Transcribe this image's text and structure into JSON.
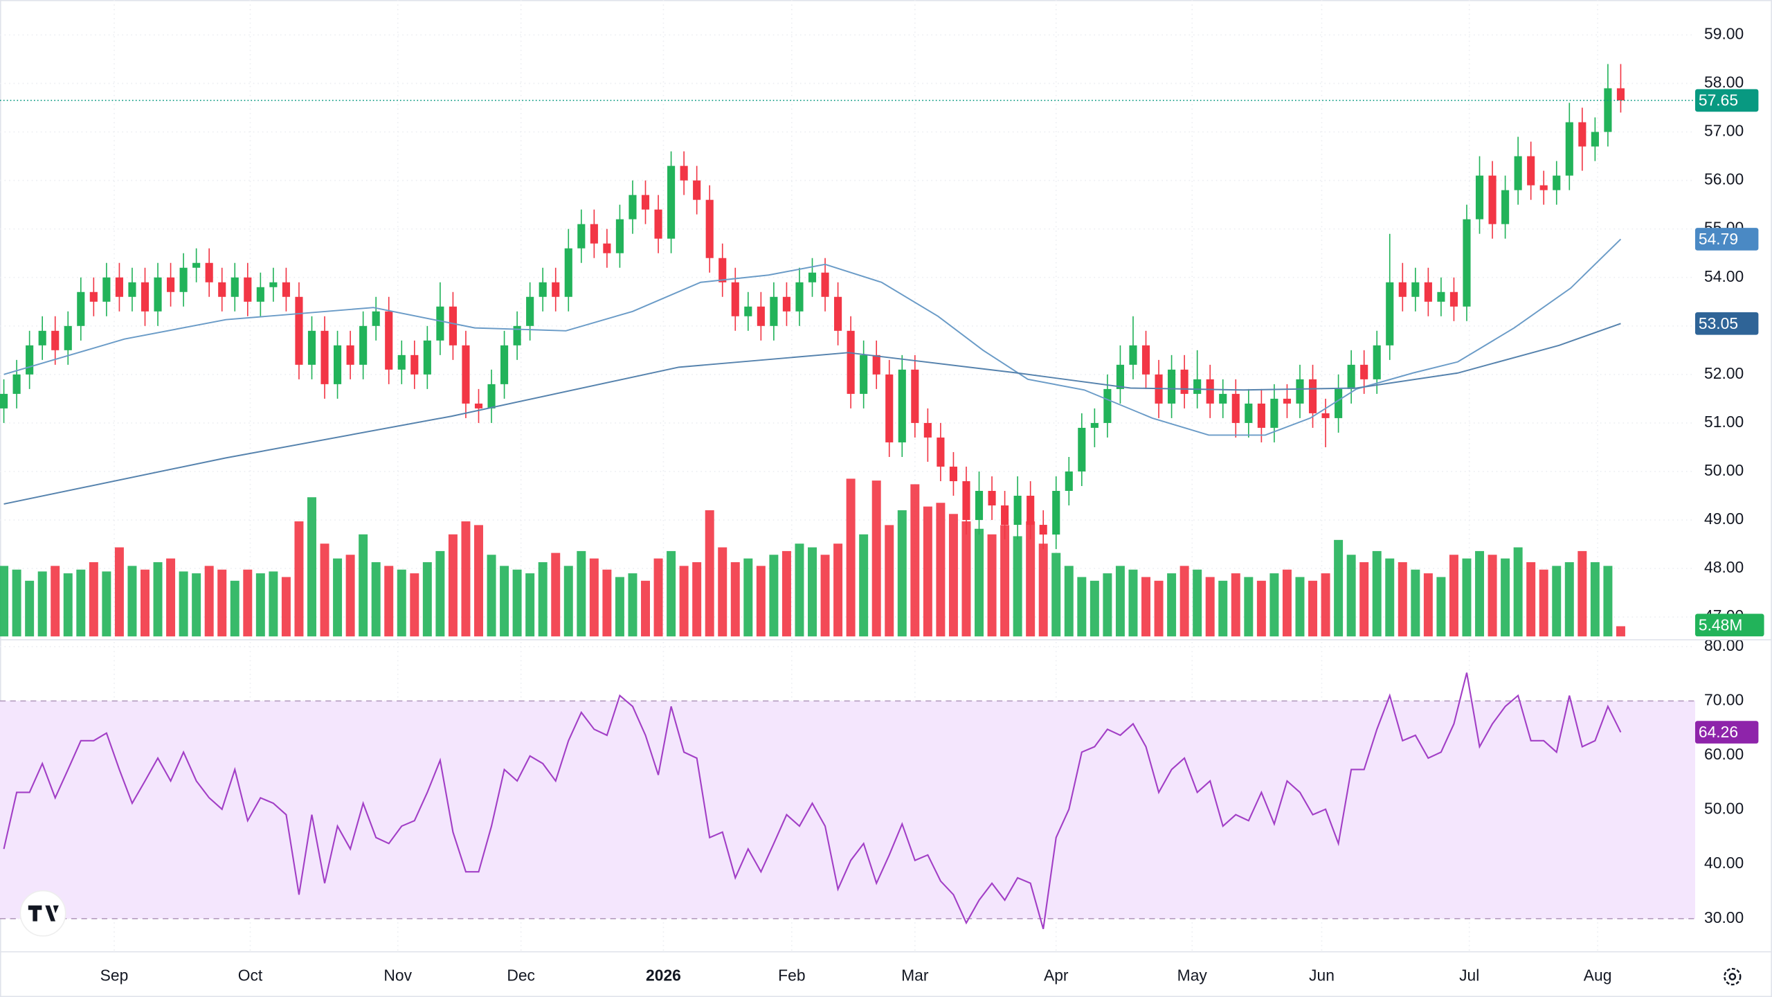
{
  "chart_data": [
    {
      "type": "candlestick",
      "up_color": "#22b35a",
      "down_color": "#f23645",
      "last_color": "#089981",
      "grid": true,
      "xlim": [
        -0.3,
        131.8
      ],
      "xticks": [
        {
          "value": 8.6,
          "label": "Sep"
        },
        {
          "value": 19.2,
          "label": "Oct"
        },
        {
          "value": 30.7,
          "label": "Nov"
        },
        {
          "value": 40.3,
          "label": "Dec"
        },
        {
          "value": 51.4,
          "label": "2026",
          "bold": true
        },
        {
          "value": 61.4,
          "label": "Feb"
        },
        {
          "value": 71.0,
          "label": "Mar"
        },
        {
          "value": 82.0,
          "label": "Apr"
        },
        {
          "value": 92.6,
          "label": "May"
        },
        {
          "value": 102.7,
          "label": "Jun"
        },
        {
          "value": 114.2,
          "label": "Jul"
        },
        {
          "value": 124.2,
          "label": "Aug"
        }
      ],
      "ylim": [
        46.6,
        59.72
      ],
      "yticks": [
        {
          "value": 47,
          "label": "47.00"
        },
        {
          "value": 48,
          "label": "48.00"
        },
        {
          "value": 49,
          "label": "49.00"
        },
        {
          "value": 50,
          "label": "50.00"
        },
        {
          "value": 51,
          "label": "51.00"
        },
        {
          "value": 52,
          "label": "52.00"
        },
        {
          "value": 53,
          "label": "53.00"
        },
        {
          "value": 54,
          "label": "54.00"
        },
        {
          "value": 55,
          "label": "55.00"
        },
        {
          "value": 56,
          "label": "56.00"
        },
        {
          "value": 57,
          "label": "57.00"
        },
        {
          "value": 58,
          "label": "58.00"
        },
        {
          "value": 59,
          "label": "59.00"
        }
      ],
      "open": [
        51.3,
        51.6,
        52.0,
        52.6,
        52.9,
        52.5,
        53.0,
        53.7,
        53.5,
        54.0,
        53.6,
        53.9,
        53.3,
        54.0,
        53.7,
        54.2,
        54.3,
        53.9,
        53.6,
        54.0,
        53.5,
        53.8,
        53.9,
        53.6,
        52.2,
        52.9,
        51.8,
        52.6,
        52.2,
        53.0,
        53.3,
        52.1,
        52.4,
        52.0,
        52.7,
        53.4,
        52.6,
        51.4,
        51.3,
        51.8,
        52.6,
        53.0,
        53.6,
        53.9,
        53.6,
        54.6,
        55.1,
        54.7,
        54.5,
        55.2,
        55.7,
        55.4,
        54.8,
        56.3,
        56.0,
        55.6,
        54.4,
        53.9,
        53.2,
        53.4,
        53.0,
        53.6,
        53.3,
        53.9,
        54.1,
        53.6,
        52.9,
        51.6,
        52.4,
        52.0,
        50.6,
        52.1,
        51.0,
        50.7,
        50.1,
        49.8,
        49.0,
        49.6,
        49.3,
        48.9,
        49.5,
        48.9,
        48.7,
        49.6,
        50.0,
        50.9,
        51.0,
        51.7,
        52.2,
        52.6,
        52.0,
        51.4,
        52.1,
        51.6,
        51.9,
        51.4,
        51.6,
        51.0,
        51.4,
        50.9,
        51.5,
        51.4,
        51.9,
        51.2,
        51.1,
        51.7,
        52.2,
        51.9,
        52.6,
        53.9,
        53.6,
        53.9,
        53.5,
        53.7,
        53.4,
        55.2,
        56.1,
        55.1,
        55.8,
        56.5,
        55.9,
        55.8,
        56.1,
        57.2,
        56.7,
        57.0,
        57.9
      ],
      "close": [
        51.6,
        52.0,
        52.6,
        52.9,
        52.5,
        53.0,
        53.7,
        53.5,
        54.0,
        53.6,
        53.9,
        53.3,
        54.0,
        53.7,
        54.2,
        54.3,
        53.9,
        53.6,
        54.0,
        53.5,
        53.8,
        53.9,
        53.6,
        52.2,
        52.9,
        51.8,
        52.6,
        52.2,
        53.0,
        53.3,
        52.1,
        52.4,
        52.0,
        52.7,
        53.4,
        52.6,
        51.4,
        51.3,
        51.8,
        52.6,
        53.0,
        53.6,
        53.9,
        53.6,
        54.6,
        55.1,
        54.7,
        54.5,
        55.2,
        55.7,
        55.4,
        54.8,
        56.3,
        56.0,
        55.6,
        54.4,
        53.9,
        53.2,
        53.4,
        53.0,
        53.6,
        53.3,
        53.9,
        54.1,
        53.6,
        52.9,
        51.6,
        52.4,
        52.0,
        50.6,
        52.1,
        51.0,
        50.7,
        50.1,
        49.8,
        49.0,
        49.6,
        49.3,
        48.9,
        49.5,
        48.9,
        48.7,
        49.6,
        50.0,
        50.9,
        51.0,
        51.7,
        52.2,
        52.6,
        52.0,
        51.4,
        52.1,
        51.6,
        51.9,
        51.4,
        51.6,
        51.0,
        51.4,
        50.9,
        51.5,
        51.4,
        51.9,
        51.2,
        51.1,
        51.7,
        52.2,
        51.9,
        52.6,
        53.9,
        53.6,
        53.9,
        53.5,
        53.7,
        53.4,
        55.2,
        56.1,
        55.1,
        55.8,
        56.5,
        55.9,
        55.8,
        56.1,
        57.2,
        56.7,
        57.0,
        57.9,
        57.65
      ],
      "high": [
        51.9,
        52.3,
        52.9,
        53.2,
        53.2,
        53.3,
        54.0,
        54.0,
        54.3,
        54.3,
        54.2,
        54.2,
        54.3,
        54.3,
        54.5,
        54.6,
        54.6,
        54.2,
        54.3,
        54.3,
        54.1,
        54.2,
        54.2,
        53.9,
        53.2,
        53.2,
        52.9,
        52.9,
        53.3,
        53.6,
        53.6,
        52.7,
        52.7,
        53.0,
        53.9,
        53.7,
        52.9,
        51.7,
        52.1,
        52.9,
        53.3,
        53.9,
        54.2,
        54.2,
        55.0,
        55.4,
        55.4,
        55.0,
        55.5,
        56.0,
        56.0,
        55.7,
        56.6,
        56.6,
        56.3,
        55.9,
        54.7,
        54.2,
        53.7,
        53.7,
        53.9,
        53.9,
        54.2,
        54.4,
        54.4,
        53.9,
        53.2,
        52.7,
        52.7,
        52.3,
        52.4,
        52.4,
        51.3,
        51.0,
        50.4,
        50.1,
        50.0,
        49.9,
        49.6,
        49.9,
        49.8,
        49.2,
        49.9,
        50.3,
        51.2,
        51.3,
        52.0,
        52.6,
        53.2,
        52.9,
        52.3,
        52.4,
        52.4,
        52.5,
        52.2,
        51.9,
        51.9,
        51.7,
        51.7,
        51.8,
        51.8,
        52.2,
        52.2,
        51.5,
        52.0,
        52.5,
        52.5,
        52.9,
        54.9,
        54.3,
        54.2,
        54.2,
        54.0,
        54.0,
        55.5,
        56.5,
        56.4,
        56.1,
        56.9,
        56.8,
        56.2,
        56.4,
        57.6,
        57.5,
        57.3,
        58.4,
        58.4
      ],
      "low": [
        51.0,
        51.3,
        51.7,
        52.3,
        52.2,
        52.2,
        52.7,
        53.2,
        53.2,
        53.3,
        53.3,
        53.0,
        53.0,
        53.4,
        53.4,
        53.9,
        53.6,
        53.3,
        53.3,
        53.2,
        53.2,
        53.5,
        53.3,
        51.9,
        51.9,
        51.5,
        51.5,
        51.9,
        51.9,
        52.7,
        51.8,
        51.8,
        51.7,
        51.7,
        52.4,
        52.3,
        51.1,
        51.0,
        51.0,
        51.5,
        52.3,
        52.7,
        53.3,
        53.3,
        53.3,
        54.3,
        54.4,
        54.2,
        54.2,
        54.9,
        55.1,
        54.5,
        54.5,
        55.7,
        55.3,
        54.1,
        53.6,
        52.9,
        52.9,
        52.7,
        52.7,
        53.0,
        53.0,
        53.6,
        53.3,
        52.6,
        51.3,
        51.3,
        51.7,
        50.3,
        50.3,
        50.7,
        50.2,
        49.8,
        49.5,
        48.7,
        48.7,
        49.0,
        48.6,
        48.6,
        48.6,
        48.4,
        48.4,
        49.3,
        49.7,
        50.5,
        50.7,
        51.4,
        51.9,
        51.7,
        51.1,
        51.1,
        51.3,
        51.3,
        51.1,
        51.1,
        50.7,
        50.7,
        50.6,
        50.6,
        51.1,
        51.1,
        50.9,
        50.5,
        50.8,
        51.4,
        51.6,
        51.6,
        52.3,
        53.3,
        53.3,
        53.2,
        53.2,
        53.1,
        53.1,
        54.9,
        54.8,
        54.8,
        55.5,
        55.6,
        55.5,
        55.5,
        55.8,
        56.2,
        56.4,
        56.7,
        57.4
      ],
      "series": [
        {
          "color": "#6a9bc7",
          "label_color": "#4a89c4",
          "x": [
            0,
            9.4,
            17.3,
            28.8,
            36.7,
            43.8,
            49.0,
            54.3,
            59.6,
            64.0,
            68.4,
            72.8,
            76.3,
            79.8,
            84.2,
            89.5,
            93.9,
            98.3,
            101.8,
            105.4,
            109.8,
            113.3,
            117.7,
            122.1,
            126
          ],
          "values": [
            52.0,
            52.73,
            53.13,
            53.38,
            52.96,
            52.9,
            53.3,
            53.9,
            54.05,
            54.27,
            53.9,
            53.2,
            52.5,
            51.9,
            51.68,
            51.1,
            50.75,
            50.75,
            51.1,
            51.7,
            52.03,
            52.26,
            52.96,
            53.78,
            54.79
          ]
        },
        {
          "color": "#5582ad",
          "label_color": "#2f6497",
          "x": [
            0,
            17.3,
            34.9,
            52.6,
            65.8,
            79.0,
            87.8,
            96.6,
            105.4,
            113.3,
            121.2,
            126
          ],
          "values": [
            49.33,
            50.28,
            51.14,
            52.15,
            52.45,
            52.03,
            51.72,
            51.68,
            51.72,
            52.03,
            52.6,
            53.05
          ]
        }
      ]
    },
    {
      "type": "bar",
      "label_color": "#22b35a",
      "ylim": [
        0,
        343
      ],
      "values": [
        38,
        36,
        30,
        35,
        38,
        34,
        36,
        40,
        35,
        48,
        38,
        36,
        40,
        42,
        35,
        34,
        38,
        36,
        30,
        36,
        34,
        35,
        32,
        62,
        75,
        50,
        42,
        44,
        55,
        40,
        38,
        36,
        34,
        40,
        46,
        55,
        62,
        60,
        44,
        38,
        36,
        34,
        40,
        45,
        38,
        46,
        42,
        36,
        32,
        34,
        30,
        42,
        46,
        38,
        40,
        68,
        48,
        40,
        42,
        38,
        44,
        46,
        50,
        48,
        44,
        50,
        85,
        55,
        84,
        60,
        68,
        82,
        70,
        72,
        66,
        62,
        58,
        55,
        60,
        54,
        62,
        50,
        45,
        38,
        32,
        30,
        34,
        38,
        36,
        32,
        30,
        34,
        38,
        36,
        32,
        30,
        34,
        32,
        30,
        34,
        36,
        32,
        30,
        34,
        52,
        44,
        40,
        46,
        42,
        40,
        36,
        34,
        32,
        44,
        42,
        46,
        44,
        42,
        48,
        40,
        36,
        38,
        40,
        46,
        40,
        38,
        5.48
      ],
      "value_labels": [
        null,
        null,
        null,
        null,
        null,
        null,
        null,
        null,
        null,
        null,
        null,
        null,
        null,
        null,
        null,
        null,
        null,
        null,
        null,
        null,
        null,
        null,
        null,
        null,
        null,
        null,
        null,
        null,
        null,
        null,
        null,
        null,
        null,
        null,
        null,
        null,
        null,
        null,
        null,
        null,
        null,
        null,
        null,
        null,
        null,
        null,
        null,
        null,
        null,
        null,
        null,
        null,
        null,
        null,
        null,
        null,
        null,
        null,
        null,
        null,
        null,
        null,
        null,
        null,
        null,
        null,
        null,
        null,
        null,
        null,
        null,
        null,
        null,
        null,
        null,
        null,
        null,
        null,
        null,
        null,
        null,
        null,
        null,
        null,
        null,
        null,
        null,
        null,
        null,
        null,
        null,
        null,
        null,
        null,
        null,
        null,
        null,
        null,
        null,
        null,
        null,
        null,
        null,
        null,
        null,
        null,
        null,
        null,
        null,
        null,
        null,
        null,
        null,
        null,
        null,
        null,
        null,
        null,
        null,
        null,
        null,
        null,
        null,
        null,
        null,
        null,
        "5.48M"
      ]
    },
    {
      "type": "line",
      "color": "#a23fc6",
      "label_color": "#8e24aa",
      "band": [
        30,
        70
      ],
      "band_color": "#f4e6fd",
      "ylim": [
        23.9,
        81.25
      ],
      "yticks": [
        {
          "value": 30,
          "label": "30.00"
        },
        {
          "value": 40,
          "label": "40.00"
        },
        {
          "value": 50,
          "label": "50.00"
        },
        {
          "value": 60,
          "label": "60.00"
        },
        {
          "value": 70,
          "label": "70.00"
        },
        {
          "value": 80,
          "label": "80.00"
        }
      ],
      "values": [
        42.8,
        53.2,
        53.2,
        58.5,
        52.2,
        57.4,
        62.7,
        62.7,
        64.1,
        57.4,
        51.2,
        55.3,
        59.5,
        55.3,
        60.6,
        55.3,
        52.2,
        50.1,
        57.4,
        48.0,
        52.2,
        51.2,
        49.1,
        34.4,
        49.1,
        36.5,
        47.0,
        42.8,
        51.2,
        44.9,
        43.8,
        47.0,
        48.0,
        53.2,
        59.1,
        45.9,
        38.6,
        38.6,
        47.0,
        57.4,
        55.3,
        59.9,
        58.5,
        55.3,
        62.7,
        67.9,
        64.8,
        63.7,
        71.0,
        69.0,
        63.7,
        56.4,
        69.0,
        60.6,
        59.5,
        44.9,
        45.9,
        37.5,
        42.8,
        38.6,
        43.8,
        49.1,
        47.0,
        51.2,
        47.0,
        35.4,
        40.7,
        43.8,
        36.5,
        41.7,
        47.4,
        40.7,
        41.7,
        36.9,
        34.4,
        29.2,
        33.4,
        36.5,
        33.4,
        37.5,
        36.5,
        28.1,
        44.9,
        50.1,
        60.6,
        61.6,
        64.8,
        63.7,
        65.8,
        61.6,
        53.2,
        57.4,
        59.5,
        53.2,
        55.3,
        47.0,
        49.1,
        48.0,
        53.2,
        47.4,
        55.3,
        53.2,
        49.1,
        50.1,
        43.8,
        57.4,
        57.4,
        64.8,
        71.0,
        62.7,
        63.7,
        59.5,
        60.6,
        65.8,
        75.2,
        61.6,
        65.8,
        69.0,
        71.0,
        62.7,
        62.7,
        60.6,
        71.0,
        61.6,
        62.7,
        69.0,
        64.26
      ]
    }
  ]
}
